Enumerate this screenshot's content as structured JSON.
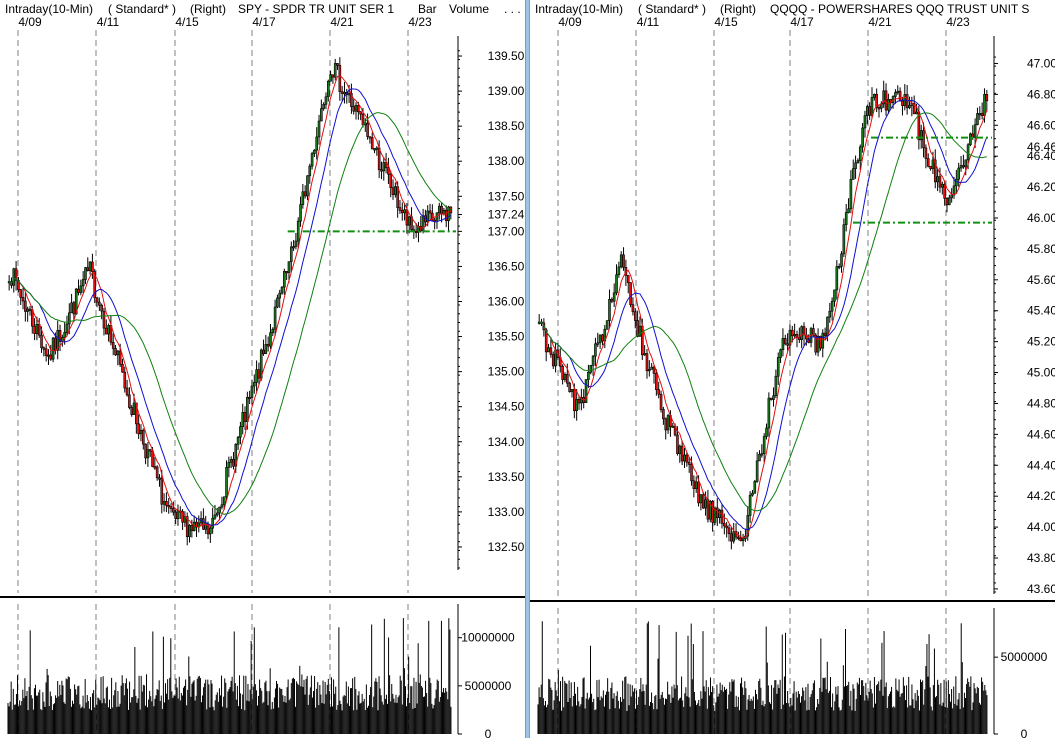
{
  "colors": {
    "up": "#1a7a1a",
    "down": "#e01010",
    "ma_fast": "#e01010",
    "ma_mid": "#1010d0",
    "ma_slow": "#108010",
    "ref_line": "#109010",
    "volume": "#000000",
    "divider": "#9fc3e6",
    "grid": "#808080"
  },
  "chart_data": [
    {
      "type": "candlestick",
      "header": [
        "Intraday(10-Min)",
        "( Standard* )",
        "(Right)",
        "SPY - SPDR TR UNIT SER 1",
        "Bar",
        "Volume",
        ". . ."
      ],
      "date_labels": [
        "4/09",
        "4/11",
        "4/15",
        "4/17",
        "4/21",
        "4/23"
      ],
      "price_axis": {
        "side": "right",
        "ylim": [
          132.2,
          139.7
        ],
        "ticks": [
          "139.50",
          "139.00",
          "138.50",
          "138.00",
          "137.50",
          "137.24",
          "137.00",
          "136.50",
          "136.00",
          "135.50",
          "135.00",
          "134.50",
          "134.00",
          "133.50",
          "133.00",
          "132.50"
        ]
      },
      "last_price": "137.24",
      "reference_lines": [
        {
          "y": 137.0,
          "from": "4/17",
          "to": "end"
        }
      ],
      "volume_axis": {
        "ylim": [
          0,
          13500000
        ],
        "ticks": [
          "10000000",
          "5000000",
          "0"
        ]
      },
      "anchors": [
        {
          "date": "4/09",
          "close": 136.45
        },
        {
          "date": "4/10",
          "close": 135.2
        },
        {
          "date": "4/11",
          "close": 136.45
        },
        {
          "date": "4/12",
          "close": 134.6
        },
        {
          "date": "4/14",
          "close": 132.9
        },
        {
          "date": "4/15",
          "close": 132.7
        },
        {
          "date": "4/16",
          "close": 134.6
        },
        {
          "date": "4/17",
          "close": 136.55
        },
        {
          "date": "4/18",
          "close": 139.4
        },
        {
          "date": "4/21",
          "close": 138.3
        },
        {
          "date": "4/22",
          "close": 137.0
        },
        {
          "date": "4/23",
          "close": 137.3
        }
      ],
      "moving_averages": [
        "fast",
        "mid",
        "slow"
      ]
    },
    {
      "type": "candlestick",
      "header": [
        "Intraday(10-Min)",
        "( Standard* )",
        "(Right)",
        "QQQQ - POWERSHARES QQQ TRUST UNIT S"
      ],
      "date_labels": [
        "4/09",
        "4/11",
        "4/15",
        "4/17",
        "4/21",
        "4/23"
      ],
      "price_axis": {
        "side": "right",
        "ylim": [
          43.58,
          47.1
        ],
        "ticks": [
          "47.00",
          "46.80",
          "46.60",
          "46.46",
          "46.40",
          "46.20",
          "46.00",
          "45.80",
          "45.60",
          "45.40",
          "45.20",
          "45.00",
          "44.80",
          "44.60",
          "44.40",
          "44.20",
          "44.00",
          "43.80",
          "43.60"
        ]
      },
      "last_price": "46.46",
      "reference_lines": [
        {
          "y": 46.52,
          "from": "4/20",
          "to": "end"
        },
        {
          "y": 45.97,
          "from": "4/18",
          "to": "end"
        }
      ],
      "volume_axis": {
        "ylim": [
          0,
          8200000
        ],
        "ticks": [
          "5000000",
          "0"
        ]
      },
      "anchors": [
        {
          "date": "4/09",
          "close": 45.3
        },
        {
          "date": "4/10",
          "close": 44.75
        },
        {
          "date": "4/11",
          "close": 45.7
        },
        {
          "date": "4/12",
          "close": 44.75
        },
        {
          "date": "4/14",
          "close": 44.15
        },
        {
          "date": "4/15",
          "close": 43.9
        },
        {
          "date": "4/16",
          "close": 45.25
        },
        {
          "date": "4/17",
          "close": 45.2
        },
        {
          "date": "4/18",
          "close": 46.7
        },
        {
          "date": "4/21",
          "close": 46.8
        },
        {
          "date": "4/22",
          "close": 46.1
        },
        {
          "date": "4/23",
          "close": 46.8
        }
      ],
      "moving_averages": [
        "fast",
        "mid",
        "slow"
      ]
    }
  ]
}
